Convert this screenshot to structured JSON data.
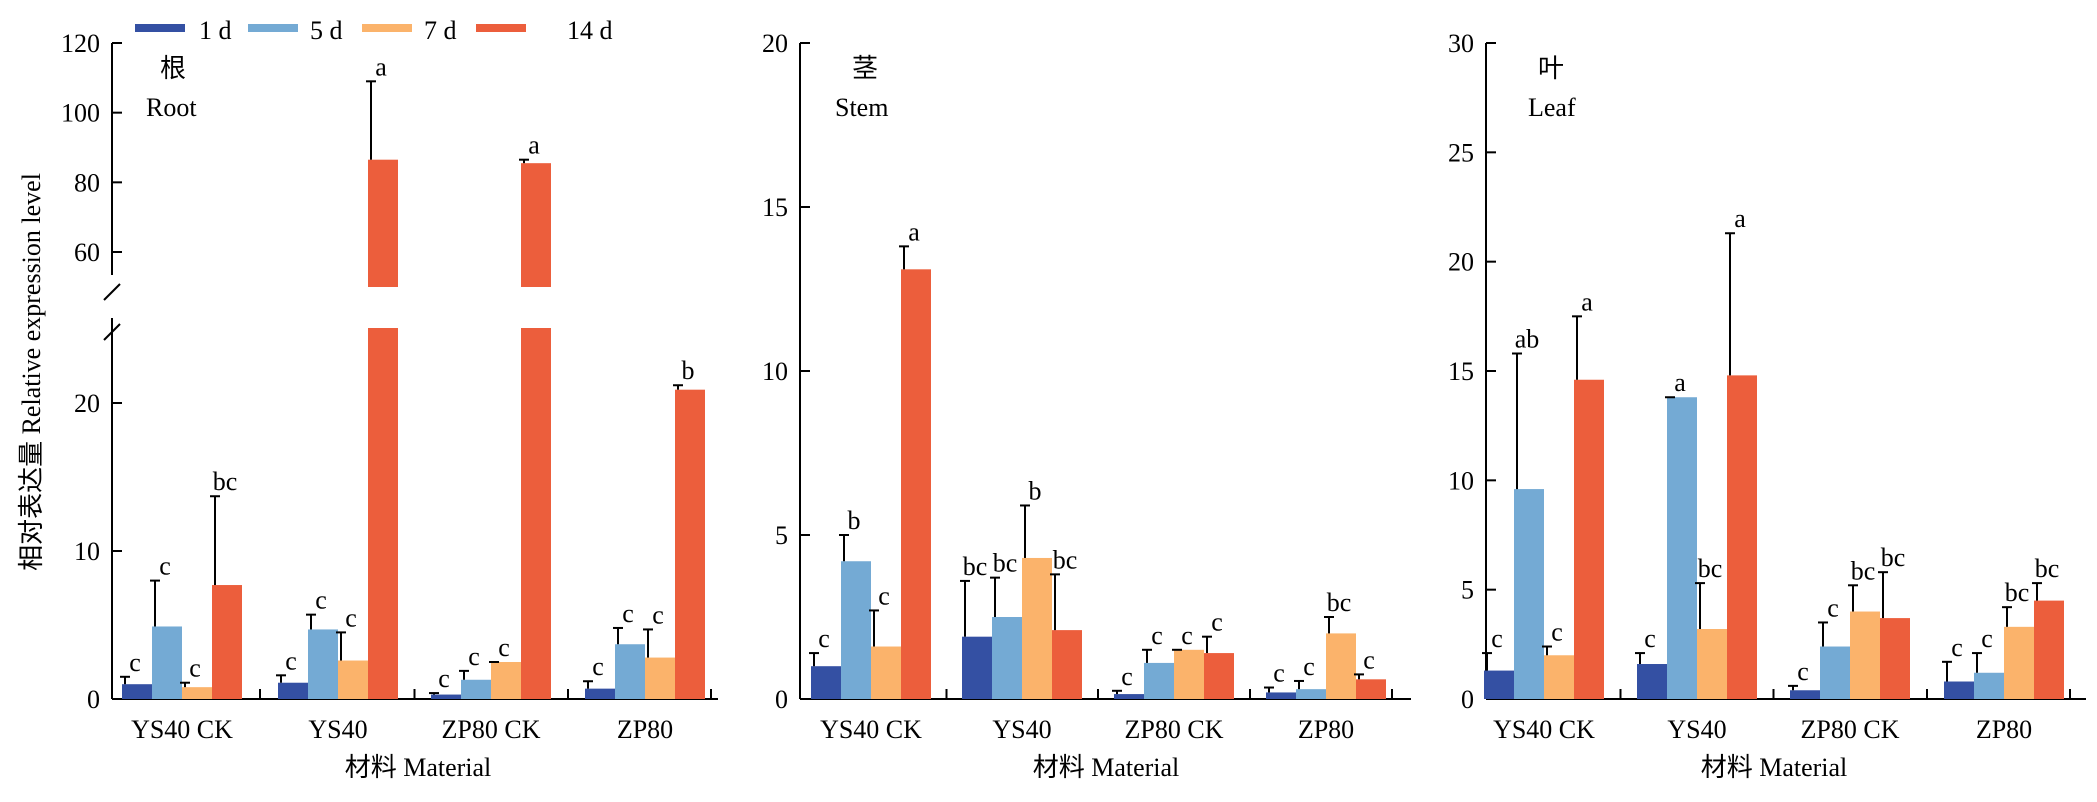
{
  "colors": {
    "d1": "#3450a3",
    "d5": "#74aad4",
    "d7": "#fbb36b",
    "d14": "#ec5e3c"
  },
  "legend": [
    {
      "label": "1 d",
      "color_key": "d1"
    },
    {
      "label": "5 d",
      "color_key": "d5"
    },
    {
      "label": "7 d",
      "color_key": "d7"
    },
    {
      "label": "14 d",
      "color_key": "d14"
    }
  ],
  "ylabel": "相对表达量 Relative expression level",
  "chart_data": [
    {
      "type": "bar",
      "panel_cn": "根",
      "panel_en": "Root",
      "xlabel": "材料 Material",
      "categories": [
        "YS40 CK",
        "YS40",
        "ZP80 CK",
        "ZP80"
      ],
      "y_axis_break": {
        "lower_range": [
          0,
          20
        ],
        "upper_range": [
          60,
          120
        ]
      },
      "yticks": [
        0,
        10,
        20,
        60,
        80,
        100,
        120
      ],
      "series": [
        {
          "name": "1 d",
          "values": [
            1.0,
            1.1,
            0.3,
            0.7
          ],
          "errors": [
            0.5,
            0.5,
            0.1,
            0.5
          ],
          "labels": [
            "c",
            "c",
            "c",
            "c"
          ]
        },
        {
          "name": "5 d",
          "values": [
            4.9,
            4.7,
            1.3,
            3.7
          ],
          "errors": [
            3.1,
            1.0,
            0.6,
            1.1
          ],
          "labels": [
            "c",
            "c",
            "c",
            "c"
          ]
        },
        {
          "name": "7 d",
          "values": [
            0.8,
            2.6,
            2.5,
            2.8
          ],
          "errors": [
            0.3,
            1.9,
            0.0,
            1.9
          ],
          "labels": [
            "c",
            "c",
            "c",
            "c"
          ]
        },
        {
          "name": "14 d",
          "values": [
            7.7,
            86.5,
            85.5,
            20.9
          ],
          "errors": [
            6.0,
            22.5,
            1.0,
            0.3
          ],
          "labels": [
            "bc",
            "a",
            "a",
            "b"
          ]
        }
      ]
    },
    {
      "type": "bar",
      "panel_cn": "茎",
      "panel_en": "Stem",
      "xlabel": "材料 Material",
      "categories": [
        "YS40 CK",
        "YS40",
        "ZP80 CK",
        "ZP80"
      ],
      "ylim": [
        0,
        20
      ],
      "yticks": [
        0,
        5,
        10,
        15,
        20
      ],
      "series": [
        {
          "name": "1 d",
          "values": [
            1.0,
            1.9,
            0.15,
            0.2
          ],
          "errors": [
            0.4,
            1.7,
            0.1,
            0.15
          ],
          "labels": [
            "c",
            "bc",
            "c",
            "c"
          ]
        },
        {
          "name": "5 d",
          "values": [
            4.2,
            2.5,
            1.1,
            0.3
          ],
          "errors": [
            0.8,
            1.2,
            0.4,
            0.25
          ],
          "labels": [
            "b",
            "bc",
            "c",
            "c"
          ]
        },
        {
          "name": "7 d",
          "values": [
            1.6,
            4.3,
            1.5,
            2.0
          ],
          "errors": [
            1.1,
            1.6,
            0.0,
            0.5
          ],
          "labels": [
            "c",
            "b",
            "c",
            "bc"
          ]
        },
        {
          "name": "14 d",
          "values": [
            13.1,
            2.1,
            1.4,
            0.6
          ],
          "errors": [
            0.7,
            1.7,
            0.5,
            0.15
          ],
          "labels": [
            "a",
            "bc",
            "c",
            "c"
          ]
        }
      ]
    },
    {
      "type": "bar",
      "panel_cn": "叶",
      "panel_en": "Leaf",
      "xlabel": "材料 Material",
      "categories": [
        "YS40 CK",
        "YS40",
        "ZP80 CK",
        "ZP80"
      ],
      "ylim": [
        0,
        30
      ],
      "yticks": [
        0,
        5,
        10,
        15,
        20,
        25,
        30
      ],
      "series": [
        {
          "name": "1 d",
          "values": [
            1.3,
            1.6,
            0.4,
            0.8
          ],
          "errors": [
            0.8,
            0.5,
            0.2,
            0.9
          ],
          "labels": [
            "c",
            "c",
            "c",
            "c"
          ]
        },
        {
          "name": "5 d",
          "values": [
            9.6,
            13.8,
            2.4,
            1.2
          ],
          "errors": [
            6.2,
            0.0,
            1.1,
            0.9
          ],
          "labels": [
            "ab",
            "a",
            "c",
            "c"
          ]
        },
        {
          "name": "7 d",
          "values": [
            2.0,
            3.2,
            4.0,
            3.3
          ],
          "errors": [
            0.4,
            2.1,
            1.2,
            0.9
          ],
          "labels": [
            "c",
            "bc",
            "bc",
            "bc"
          ]
        },
        {
          "name": "14 d",
          "values": [
            14.6,
            14.8,
            3.7,
            4.5
          ],
          "errors": [
            2.9,
            6.5,
            2.1,
            0.8
          ],
          "labels": [
            "a",
            "a",
            "bc",
            "bc"
          ]
        }
      ]
    }
  ]
}
